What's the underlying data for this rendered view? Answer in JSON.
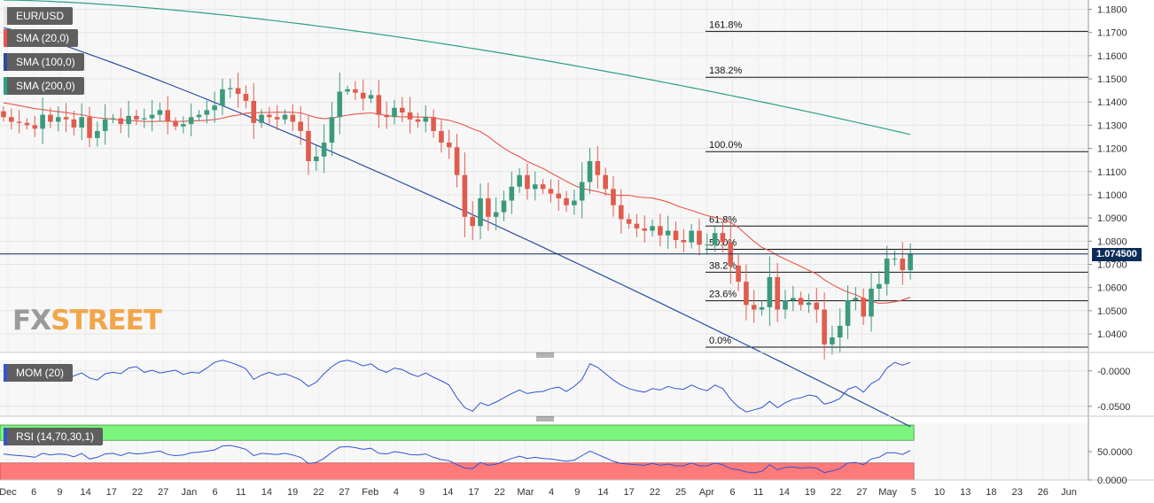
{
  "instrument": "EUR/USD",
  "last_price_tag": "1.074500",
  "watermark": {
    "part1": "FX",
    "part2": "STREET"
  },
  "colors": {
    "up": "#3c9a7c",
    "down": "#df5c4e",
    "sma20": "#e8554a",
    "sma100": "#2b4d9e",
    "sma200": "#2aa087",
    "momentum": "#3453d1",
    "rsi": "#3453d1",
    "rsi_overbought": "#7cf57c",
    "rsi_oversold": "#ff7a7a",
    "price_tag": "#0b2d58"
  },
  "indicator_legends": [
    {
      "label": "SMA (20,0)",
      "color": "#e8554a"
    },
    {
      "label": "SMA (100,0)",
      "color": "#2b4d9e"
    },
    {
      "label": "SMA (200,0)",
      "color": "#2aa087"
    }
  ],
  "momentum_label": "MOM (20)",
  "rsi_label": "RSI (14,70,30,1)",
  "chart_data": [
    {
      "type": "candlestick",
      "title": "EUR/USD",
      "ylim": [
        1.032,
        1.184
      ],
      "y_ticks": [
        "1.1800",
        "1.1700",
        "1.1600",
        "1.1500",
        "1.1400",
        "1.1300",
        "1.1200",
        "1.1100",
        "1.1000",
        "1.0900",
        "1.0800",
        "1.0700",
        "1.0600",
        "1.0500",
        "1.0400"
      ],
      "x_ticks": [
        "Dec",
        "6",
        "9",
        "14",
        "17",
        "22",
        "27",
        "Jan",
        "6",
        "11",
        "14",
        "19",
        "22",
        "27",
        "Feb",
        "4",
        "9",
        "14",
        "17",
        "22",
        "Mar",
        "4",
        "9",
        "14",
        "17",
        "22",
        "25",
        "Apr",
        "6",
        "11",
        "14",
        "19",
        "22",
        "27",
        "May",
        "5",
        "10",
        "13",
        "18",
        "23",
        "26",
        "Jun"
      ],
      "closes": [
        1.1335,
        1.1315,
        1.131,
        1.13,
        1.1285,
        1.1345,
        1.1315,
        1.1335,
        1.1325,
        1.129,
        1.1335,
        1.1245,
        1.1275,
        1.1325,
        1.133,
        1.1305,
        1.134,
        1.1325,
        1.133,
        1.1345,
        1.1365,
        1.1315,
        1.1295,
        1.1305,
        1.1335,
        1.1345,
        1.1365,
        1.1385,
        1.1455,
        1.146,
        1.1435,
        1.1405,
        1.131,
        1.1345,
        1.1335,
        1.1325,
        1.1345,
        1.1315,
        1.1275,
        1.1145,
        1.1165,
        1.1225,
        1.1335,
        1.1445,
        1.1455,
        1.144,
        1.1415,
        1.143,
        1.1345,
        1.1335,
        1.1375,
        1.1355,
        1.1325,
        1.1315,
        1.1335,
        1.1275,
        1.1225,
        1.1205,
        1.1085,
        1.0905,
        1.0865,
        1.0985,
        1.0905,
        1.0925,
        1.0975,
        1.1035,
        1.1085,
        1.1025,
        1.1045,
        1.1025,
        1.1005,
        1.0985,
        1.0955,
        1.0975,
        1.1055,
        1.1145,
        1.1085,
        1.1025,
        1.0955,
        1.0895,
        1.0875,
        1.0855,
        1.0845,
        1.0865,
        1.0825,
        1.0845,
        1.0805,
        1.0795,
        1.0845,
        1.0785,
        1.0785,
        1.0835,
        1.0795,
        1.0695,
        1.0625,
        1.0525,
        1.0505,
        1.0515,
        1.0645,
        1.0505,
        1.0545,
        1.0555,
        1.0525,
        1.0535,
        1.0505,
        1.0355,
        1.0385,
        1.0435,
        1.0545,
        1.0555,
        1.0475,
        1.0595,
        1.0615,
        1.0725,
        1.0725,
        1.0675,
        1.0745
      ],
      "ohlc_note": "daily candles, Nov 29 - May 27",
      "series": [
        {
          "name": "SMA (20,0)"
        },
        {
          "name": "SMA (100,0)"
        },
        {
          "name": "SMA (200,0)"
        }
      ],
      "fibonacci": [
        {
          "label": "161.8%",
          "value": 1.1705
        },
        {
          "label": "138.2%",
          "value": 1.1507
        },
        {
          "label": "100.0%",
          "value": 1.1186
        },
        {
          "label": "61.8%",
          "value": 1.0865
        },
        {
          "label": "50.0%",
          "value": 1.0765
        },
        {
          "label": "38.2%",
          "value": 1.0666
        },
        {
          "label": "23.6%",
          "value": 1.0543
        },
        {
          "label": "0.0%",
          "value": 1.0343
        }
      ],
      "last_price": 1.0745
    },
    {
      "type": "line",
      "title": "MOM (20)",
      "ylim": [
        -0.064,
        0.016
      ],
      "y_ticks": [
        "-0.0000",
        "-0.0500"
      ],
      "values": [
        0.0,
        -0.005,
        -0.008,
        -0.004,
        -0.003,
        -0.006,
        -0.002,
        -0.009,
        -0.012,
        -0.007,
        -0.003,
        -0.01,
        -0.013,
        -0.004,
        -0.002,
        -0.004,
        0.004,
        0.006,
        -0.002,
        0.001,
        -0.003,
        -0.001,
        0.001,
        -0.005,
        -0.002,
        -0.003,
        0.004,
        0.012,
        0.015,
        0.012,
        0.008,
        0.003,
        -0.012,
        -0.006,
        -0.002,
        -0.006,
        -0.004,
        -0.008,
        -0.013,
        -0.022,
        -0.016,
        -0.004,
        0.006,
        0.013,
        0.015,
        0.012,
        0.007,
        0.01,
        0.002,
        -0.002,
        0.004,
        0.002,
        -0.004,
        -0.008,
        -0.003,
        -0.009,
        -0.014,
        -0.02,
        -0.038,
        -0.052,
        -0.057,
        -0.045,
        -0.049,
        -0.044,
        -0.038,
        -0.032,
        -0.027,
        -0.032,
        -0.03,
        -0.029,
        -0.025,
        -0.023,
        -0.029,
        -0.022,
        -0.012,
        0.01,
        0.005,
        -0.004,
        -0.013,
        -0.02,
        -0.025,
        -0.028,
        -0.03,
        -0.025,
        -0.027,
        -0.022,
        -0.025,
        -0.026,
        -0.02,
        -0.025,
        -0.028,
        -0.02,
        -0.025,
        -0.04,
        -0.051,
        -0.058,
        -0.055,
        -0.052,
        -0.043,
        -0.052,
        -0.045,
        -0.04,
        -0.038,
        -0.034,
        -0.036,
        -0.047,
        -0.044,
        -0.039,
        -0.026,
        -0.022,
        -0.03,
        -0.018,
        -0.012,
        0.004,
        0.012,
        0.008,
        0.012
      ]
    },
    {
      "type": "line",
      "title": "RSI (14,70,30,1)",
      "ylim": [
        0,
        100
      ],
      "y_ticks": [
        "50.0000",
        "0.0000"
      ],
      "overbought": 70,
      "oversold": 30,
      "values": [
        46,
        44,
        43,
        42,
        40,
        47,
        44,
        46,
        45,
        41,
        47,
        37,
        40,
        46,
        47,
        43,
        48,
        46,
        47,
        49,
        51,
        45,
        43,
        44,
        48,
        49,
        51,
        53,
        60,
        61,
        58,
        54,
        43,
        47,
        46,
        45,
        47,
        44,
        40,
        29,
        31,
        38,
        49,
        58,
        59,
        57,
        54,
        56,
        47,
        46,
        50,
        48,
        45,
        44,
        46,
        40,
        36,
        34,
        27,
        21,
        20,
        31,
        26,
        28,
        33,
        38,
        42,
        38,
        40,
        38,
        37,
        35,
        33,
        35,
        43,
        51,
        45,
        39,
        33,
        29,
        28,
        27,
        26,
        29,
        26,
        28,
        25,
        25,
        30,
        25,
        25,
        30,
        27,
        20,
        18,
        14,
        13,
        15,
        27,
        18,
        22,
        23,
        21,
        22,
        21,
        13,
        16,
        20,
        30,
        31,
        27,
        37,
        40,
        48,
        48,
        45,
        52
      ]
    }
  ]
}
